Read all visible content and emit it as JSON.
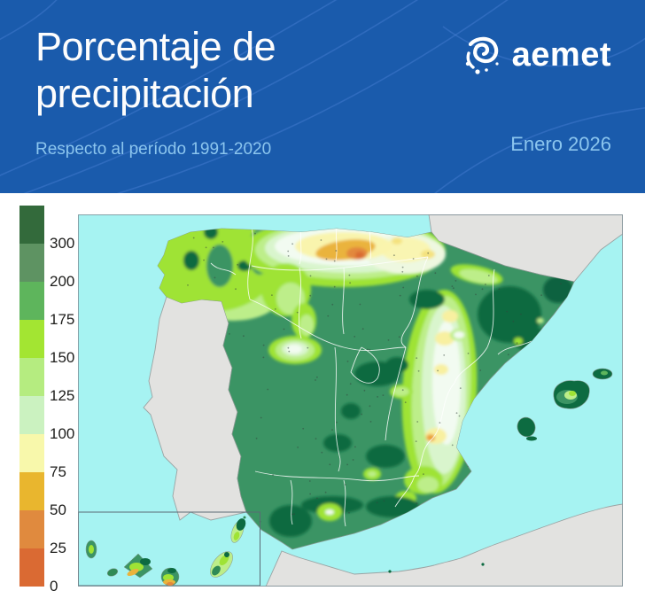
{
  "header": {
    "title_line1": "Porcentaje de",
    "title_line2": "precipitación",
    "subtitle": "Respecto al período 1991-2020",
    "period_label": "Enero 2026",
    "brand_name": "aemet",
    "background_color": "#1a5bac",
    "title_color": "#ffffff",
    "accent_color": "#8bc5ee"
  },
  "legend": {
    "bands": [
      {
        "color": "#336a3b",
        "label": "300"
      },
      {
        "color": "#5e9362",
        "label": "200"
      },
      {
        "color": "#5eb55c",
        "label": "175"
      },
      {
        "color": "#a3e532",
        "label": "150"
      },
      {
        "color": "#b5ec80",
        "label": "125"
      },
      {
        "color": "#cbf2c0",
        "label": "100"
      },
      {
        "color": "#f8f8ab",
        "label": "75"
      },
      {
        "color": "#e9b62e",
        "label": "50"
      },
      {
        "color": "#e08a3e",
        "label": "25"
      },
      {
        "color": "#da6a33",
        "label": "0"
      }
    ]
  },
  "map": {
    "sea_color": "#a6f3f2",
    "foreign_land_color": "#e2e2e0",
    "spain_base_color": "#3b9464",
    "high_anomaly_color": "#0d6b41",
    "low_anomaly_colors": [
      "#f8f8ab",
      "#e9b62e",
      "#e2883c",
      "#d96a31"
    ],
    "border_color": "#ffffff"
  }
}
